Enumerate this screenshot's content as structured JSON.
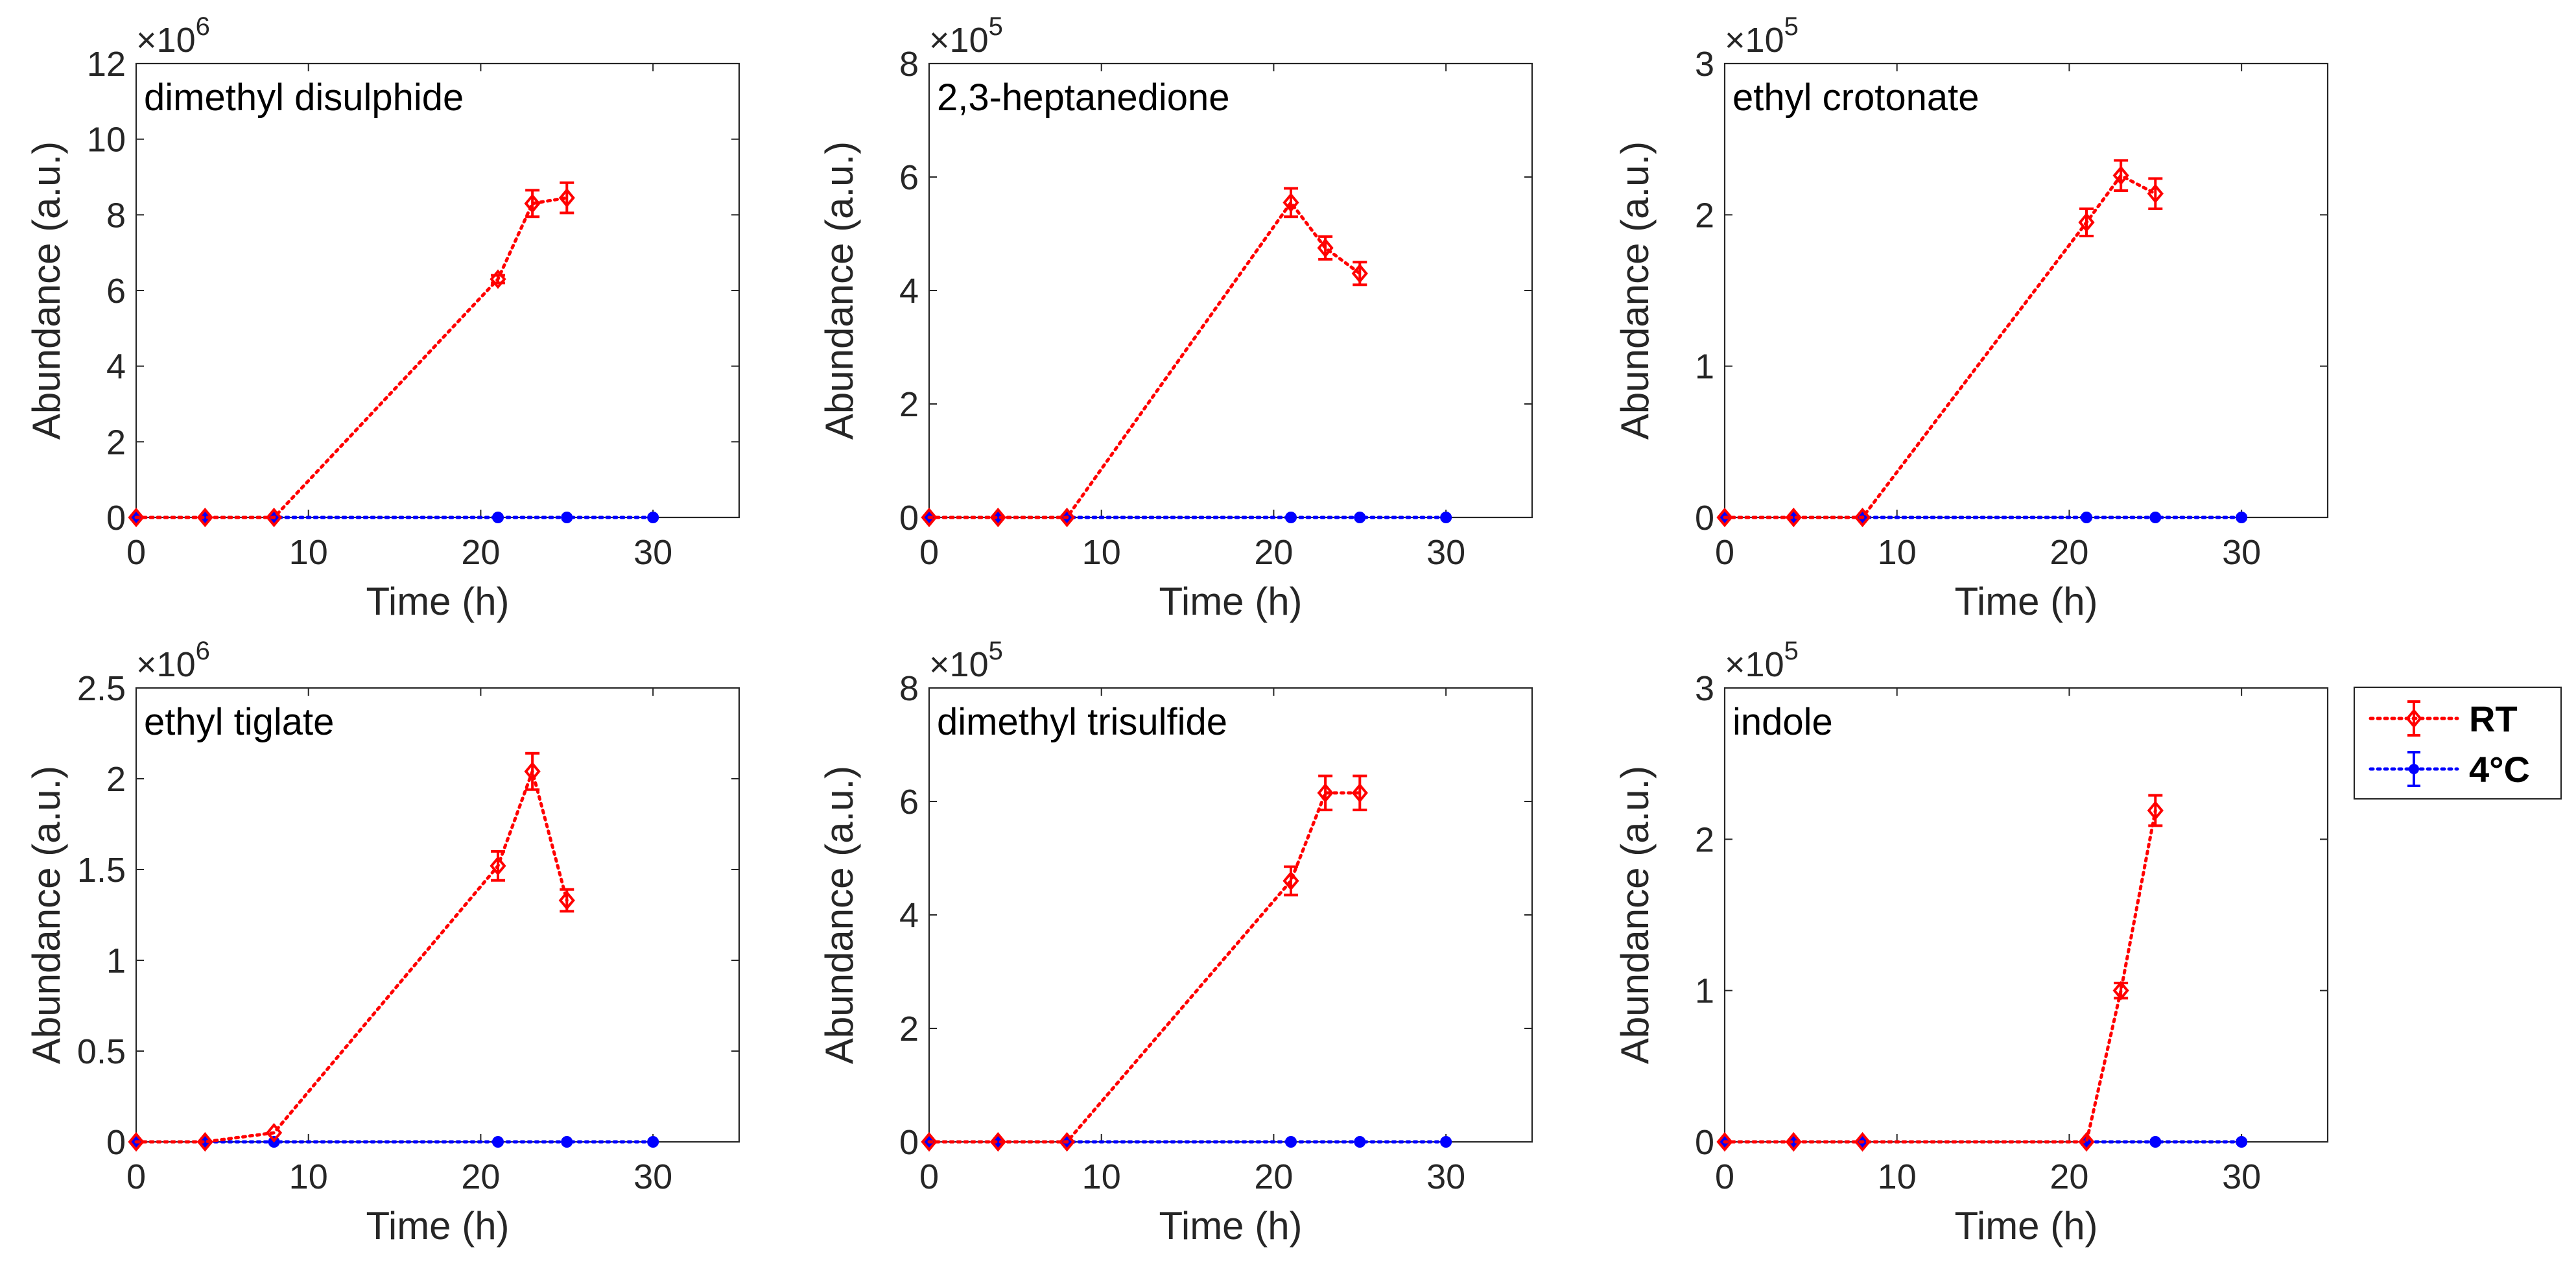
{
  "chart_data": [
    {
      "type": "line",
      "title": "dimethyl disulphide",
      "xlabel": "Time (h)",
      "ylabel": "Abundance (a.u.)",
      "exponent_base": "×10",
      "exponent": "6",
      "xlim": [
        0,
        35
      ],
      "ylim": [
        0,
        12
      ],
      "xticks": [
        "0",
        "10",
        "20",
        "30"
      ],
      "yticks": [
        "0",
        "2",
        "4",
        "6",
        "8",
        "10",
        "12"
      ],
      "series": [
        {
          "name": "RT",
          "color": "#ff0000",
          "x": [
            0,
            4,
            8,
            21,
            23,
            25
          ],
          "y": [
            0,
            0,
            0,
            6.3,
            8.3,
            8.45
          ],
          "err": [
            0,
            0,
            0,
            0.1,
            0.35,
            0.4
          ]
        },
        {
          "name": "4°C",
          "color": "#0000ff",
          "x": [
            0,
            4,
            8,
            21,
            25,
            30
          ],
          "y": [
            0,
            0,
            0,
            0,
            0,
            0
          ],
          "err": [
            0,
            0,
            0,
            0,
            0,
            0
          ]
        }
      ]
    },
    {
      "type": "line",
      "title": "2,3-heptanedione",
      "xlabel": "Time (h)",
      "ylabel": "Abundance (a.u.)",
      "exponent_base": "×10",
      "exponent": "5",
      "xlim": [
        0,
        35
      ],
      "ylim": [
        0,
        8
      ],
      "xticks": [
        "0",
        "10",
        "20",
        "30"
      ],
      "yticks": [
        "0",
        "2",
        "4",
        "6",
        "8"
      ],
      "series": [
        {
          "name": "RT",
          "color": "#ff0000",
          "x": [
            0,
            4,
            8,
            21,
            23,
            25
          ],
          "y": [
            0,
            0,
            0,
            5.55,
            4.75,
            4.3
          ],
          "err": [
            0,
            0,
            0,
            0.25,
            0.2,
            0.2
          ]
        },
        {
          "name": "4°C",
          "color": "#0000ff",
          "x": [
            0,
            4,
            8,
            21,
            25,
            30
          ],
          "y": [
            0,
            0,
            0,
            0,
            0,
            0
          ],
          "err": [
            0,
            0,
            0,
            0,
            0,
            0
          ]
        }
      ]
    },
    {
      "type": "line",
      "title": "ethyl crotonate",
      "xlabel": "Time (h)",
      "ylabel": "Abundance (a.u.)",
      "exponent_base": "×10",
      "exponent": "5",
      "xlim": [
        0,
        35
      ],
      "ylim": [
        0,
        3
      ],
      "xticks": [
        "0",
        "10",
        "20",
        "30"
      ],
      "yticks": [
        "0",
        "1",
        "2",
        "3"
      ],
      "series": [
        {
          "name": "RT",
          "color": "#ff0000",
          "x": [
            0,
            4,
            8,
            21,
            23,
            25
          ],
          "y": [
            0,
            0,
            0,
            1.95,
            2.26,
            2.14
          ],
          "err": [
            0,
            0,
            0,
            0.09,
            0.1,
            0.1
          ]
        },
        {
          "name": "4°C",
          "color": "#0000ff",
          "x": [
            0,
            4,
            8,
            21,
            25,
            30
          ],
          "y": [
            0,
            0,
            0,
            0,
            0,
            0
          ],
          "err": [
            0,
            0,
            0,
            0,
            0,
            0
          ]
        }
      ]
    },
    {
      "type": "line",
      "title": "ethyl tiglate",
      "xlabel": "Time (h)",
      "ylabel": "Abundance (a.u.)",
      "exponent_base": "×10",
      "exponent": "6",
      "xlim": [
        0,
        35
      ],
      "ylim": [
        0,
        2.5
      ],
      "xticks": [
        "0",
        "10",
        "20",
        "30"
      ],
      "yticks": [
        "0",
        "0.5",
        "1",
        "1.5",
        "2",
        "2.5"
      ],
      "series": [
        {
          "name": "RT",
          "color": "#ff0000",
          "x": [
            0,
            4,
            8,
            21,
            23,
            25
          ],
          "y": [
            0,
            0,
            0.05,
            1.52,
            2.04,
            1.33
          ],
          "err": [
            0,
            0,
            0,
            0.08,
            0.1,
            0.06
          ]
        },
        {
          "name": "4°C",
          "color": "#0000ff",
          "x": [
            0,
            4,
            8,
            21,
            25,
            30
          ],
          "y": [
            0,
            0,
            0,
            0,
            0,
            0
          ],
          "err": [
            0,
            0,
            0,
            0,
            0,
            0
          ]
        }
      ]
    },
    {
      "type": "line",
      "title": "dimethyl trisulfide",
      "xlabel": "Time (h)",
      "ylabel": "Abundance (a.u.)",
      "exponent_base": "×10",
      "exponent": "5",
      "xlim": [
        0,
        35
      ],
      "ylim": [
        0,
        8
      ],
      "xticks": [
        "0",
        "10",
        "20",
        "30"
      ],
      "yticks": [
        "0",
        "2",
        "4",
        "6",
        "8"
      ],
      "series": [
        {
          "name": "RT",
          "color": "#ff0000",
          "x": [
            0,
            4,
            8,
            21,
            23,
            25
          ],
          "y": [
            0,
            0,
            0,
            4.6,
            6.15,
            6.15
          ],
          "err": [
            0,
            0,
            0,
            0.25,
            0.3,
            0.3
          ]
        },
        {
          "name": "4°C",
          "color": "#0000ff",
          "x": [
            0,
            4,
            8,
            21,
            25,
            30
          ],
          "y": [
            0,
            0,
            0,
            0,
            0,
            0
          ],
          "err": [
            0,
            0,
            0,
            0,
            0,
            0
          ]
        }
      ]
    },
    {
      "type": "line",
      "title": "indole",
      "xlabel": "Time (h)",
      "ylabel": "Abundance (a.u.)",
      "exponent_base": "×10",
      "exponent": "5",
      "xlim": [
        0,
        35
      ],
      "ylim": [
        0,
        3
      ],
      "xticks": [
        "0",
        "10",
        "20",
        "30"
      ],
      "yticks": [
        "0",
        "1",
        "2",
        "3"
      ],
      "series": [
        {
          "name": "RT",
          "color": "#ff0000",
          "x": [
            0,
            4,
            8,
            21,
            23,
            25
          ],
          "y": [
            0,
            0,
            0,
            0,
            1.0,
            2.19
          ],
          "err": [
            0,
            0,
            0,
            0,
            0.05,
            0.1
          ]
        },
        {
          "name": "4°C",
          "color": "#0000ff",
          "x": [
            0,
            4,
            8,
            21,
            25,
            30
          ],
          "y": [
            0,
            0,
            0,
            0,
            0,
            0
          ],
          "err": [
            0,
            0,
            0,
            0,
            0,
            0
          ]
        }
      ]
    }
  ],
  "legend": {
    "entries": [
      {
        "label": "RT",
        "color": "#ff0000"
      },
      {
        "label": "4°C",
        "color": "#0000ff"
      }
    ]
  }
}
